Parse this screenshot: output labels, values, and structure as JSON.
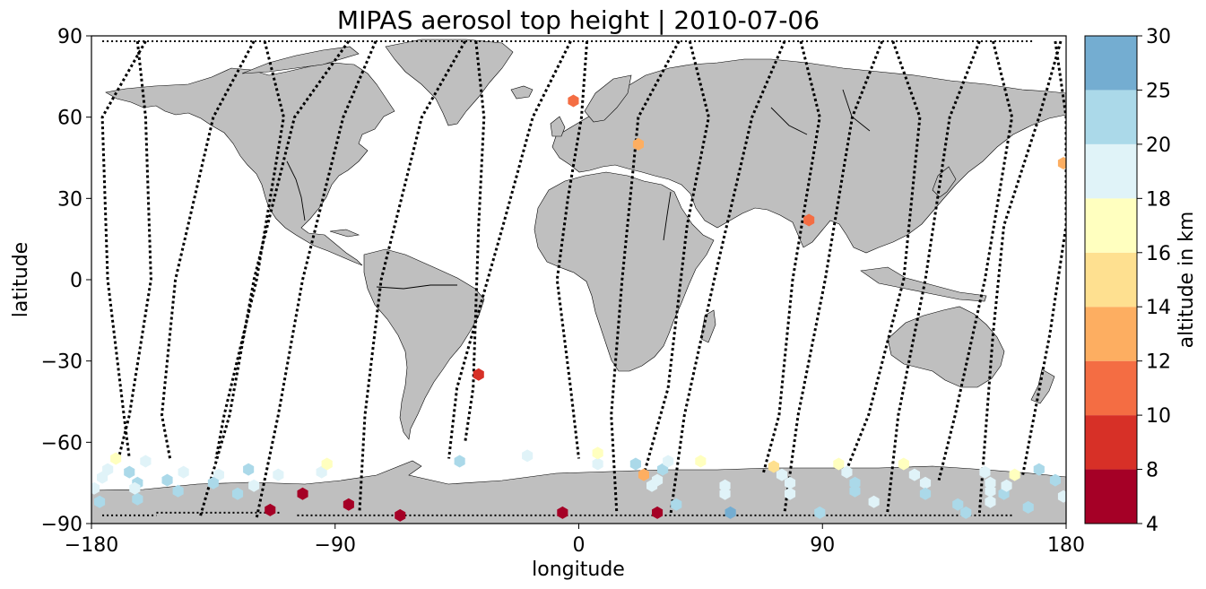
{
  "title": "MIPAS aerosol top height | 2010-07-06",
  "colors": {
    "land": "#bfbfbf",
    "coast": "#000000",
    "track": "#000000",
    "background": "#ffffff"
  },
  "chart_data": {
    "type": "map-scatter",
    "projection": "plate-carree",
    "xlabel": "longitude",
    "ylabel": "latitude",
    "xlim": [
      -180,
      180
    ],
    "ylim": [
      -90,
      90
    ],
    "xticks": [
      -180,
      -90,
      0,
      90,
      180
    ],
    "yticks": [
      90,
      60,
      30,
      0,
      -30,
      -60,
      -90
    ],
    "grid": false,
    "colorbar": {
      "label": "altitude in km",
      "placement": "right",
      "boundaries": [
        4,
        8,
        10,
        12,
        14,
        16,
        18,
        20,
        25,
        30
      ],
      "colors": [
        "#a50026",
        "#d73027",
        "#f46d43",
        "#fdae61",
        "#fee090",
        "#ffffbf",
        "#e0f3f8",
        "#abd9e9",
        "#74add1",
        "#313695"
      ]
    },
    "points": [
      {
        "lon": -177,
        "lat": -82,
        "alt": 21
      },
      {
        "lon": -179,
        "lat": -77,
        "alt": 19
      },
      {
        "lon": -176,
        "lat": -73,
        "alt": 19
      },
      {
        "lon": -174,
        "lat": -70,
        "alt": 19
      },
      {
        "lon": -171,
        "lat": -66,
        "alt": 16
      },
      {
        "lon": -166,
        "lat": -71,
        "alt": 21
      },
      {
        "lon": -163,
        "lat": -75,
        "alt": 21
      },
      {
        "lon": -163,
        "lat": -81,
        "alt": 21
      },
      {
        "lon": -164,
        "lat": -77,
        "alt": 18
      },
      {
        "lon": -160,
        "lat": -67,
        "alt": 19
      },
      {
        "lon": -152,
        "lat": -74,
        "alt": 21
      },
      {
        "lon": -146,
        "lat": -71,
        "alt": 19
      },
      {
        "lon": -148,
        "lat": -78,
        "alt": 21
      },
      {
        "lon": -133,
        "lat": -72,
        "alt": 19
      },
      {
        "lon": -126,
        "lat": -79,
        "alt": 21
      },
      {
        "lon": -120,
        "lat": -76,
        "alt": 19
      },
      {
        "lon": -111,
        "lat": -72,
        "alt": 19
      },
      {
        "lon": -122,
        "lat": -70,
        "alt": 21
      },
      {
        "lon": -135,
        "lat": -75,
        "alt": 21
      },
      {
        "lon": -114,
        "lat": -85,
        "alt": 6
      },
      {
        "lon": -102,
        "lat": -79,
        "alt": 6
      },
      {
        "lon": -95,
        "lat": -71,
        "alt": 19
      },
      {
        "lon": -93,
        "lat": -68,
        "alt": 17
      },
      {
        "lon": -85,
        "lat": -83,
        "alt": 6
      },
      {
        "lon": -66,
        "lat": -87,
        "alt": 6
      },
      {
        "lon": -44,
        "lat": -67,
        "alt": 21
      },
      {
        "lon": -37,
        "lat": -35,
        "alt": 9
      },
      {
        "lon": -19,
        "lat": -65,
        "alt": 19
      },
      {
        "lon": -6,
        "lat": -86,
        "alt": 6
      },
      {
        "lon": -2,
        "lat": 66,
        "alt": 11
      },
      {
        "lon": 7,
        "lat": -68,
        "alt": 19
      },
      {
        "lon": 7,
        "lat": -64,
        "alt": 17
      },
      {
        "lon": 21,
        "lat": -68,
        "alt": 21
      },
      {
        "lon": 22,
        "lat": 50,
        "alt": 13
      },
      {
        "lon": 24,
        "lat": -72,
        "alt": 13
      },
      {
        "lon": 27,
        "lat": -76,
        "alt": 19
      },
      {
        "lon": 29,
        "lat": -74,
        "alt": 18
      },
      {
        "lon": 31,
        "lat": -70,
        "alt": 21
      },
      {
        "lon": 33,
        "lat": -67,
        "alt": 19
      },
      {
        "lon": 29,
        "lat": -86,
        "alt": 6
      },
      {
        "lon": 36,
        "lat": -83,
        "alt": 21
      },
      {
        "lon": 45,
        "lat": -67,
        "alt": 17
      },
      {
        "lon": 54,
        "lat": -76,
        "alt": 19
      },
      {
        "lon": 54,
        "lat": -79,
        "alt": 19
      },
      {
        "lon": 56,
        "lat": -86,
        "alt": 28
      },
      {
        "lon": 72,
        "lat": -69,
        "alt": 15
      },
      {
        "lon": 75,
        "lat": -72,
        "alt": 19
      },
      {
        "lon": 78,
        "lat": -75,
        "alt": 19
      },
      {
        "lon": 78,
        "lat": -79,
        "alt": 19
      },
      {
        "lon": 85,
        "lat": 22,
        "alt": 11
      },
      {
        "lon": 89,
        "lat": -86,
        "alt": 21
      },
      {
        "lon": 96,
        "lat": -68,
        "alt": 17
      },
      {
        "lon": 99,
        "lat": -71,
        "alt": 19
      },
      {
        "lon": 102,
        "lat": -75,
        "alt": 21
      },
      {
        "lon": 102,
        "lat": -78,
        "alt": 21
      },
      {
        "lon": 109,
        "lat": -82,
        "alt": 19
      },
      {
        "lon": 120,
        "lat": -68,
        "alt": 17
      },
      {
        "lon": 124,
        "lat": -72,
        "alt": 19
      },
      {
        "lon": 128,
        "lat": -75,
        "alt": 19
      },
      {
        "lon": 128,
        "lat": -79,
        "alt": 21
      },
      {
        "lon": 140,
        "lat": -83,
        "alt": 21
      },
      {
        "lon": 143,
        "lat": -86,
        "alt": 21
      },
      {
        "lon": 150,
        "lat": -71,
        "alt": 19
      },
      {
        "lon": 152,
        "lat": -75,
        "alt": 19
      },
      {
        "lon": 152,
        "lat": -78,
        "alt": 19
      },
      {
        "lon": 152,
        "lat": -82,
        "alt": 19
      },
      {
        "lon": 157,
        "lat": -79,
        "alt": 21
      },
      {
        "lon": 158,
        "lat": -76,
        "alt": 19
      },
      {
        "lon": 161,
        "lat": -72,
        "alt": 17
      },
      {
        "lon": 170,
        "lat": -70,
        "alt": 21
      },
      {
        "lon": 176,
        "lat": -74,
        "alt": 21
      },
      {
        "lon": 179,
        "lat": -80,
        "alt": 19
      },
      {
        "lon": 166,
        "lat": -84,
        "alt": 21
      },
      {
        "lon": 179,
        "lat": 43,
        "alt": 13
      }
    ],
    "tracks": [
      [
        [
          -160,
          88
        ],
        [
          -176,
          60
        ],
        [
          -174,
          0
        ],
        [
          -168,
          -50
        ],
        [
          -166,
          -66
        ]
      ],
      [
        [
          -163,
          88
        ],
        [
          -160,
          60
        ],
        [
          -158,
          0
        ],
        [
          -166,
          -50
        ],
        [
          -170,
          -66
        ]
      ],
      [
        [
          -120,
          88
        ],
        [
          -135,
          60
        ],
        [
          -149,
          0
        ],
        [
          -154,
          -50
        ],
        [
          -151,
          -66
        ]
      ],
      [
        [
          -116,
          88
        ],
        [
          -109,
          60
        ],
        [
          -119,
          0
        ],
        [
          -131,
          -50
        ],
        [
          -134,
          -66
        ]
      ],
      [
        [
          -85,
          88
        ],
        [
          -105,
          60
        ],
        [
          -120,
          0
        ],
        [
          -129,
          -50
        ],
        [
          -140,
          -88
        ]
      ],
      [
        [
          -75,
          88
        ],
        [
          -87,
          60
        ],
        [
          -102,
          0
        ],
        [
          -111,
          -50
        ],
        [
          -119,
          -88
        ]
      ],
      [
        [
          -42,
          88
        ],
        [
          -58,
          60
        ],
        [
          -73,
          0
        ],
        [
          -79,
          -50
        ],
        [
          -81,
          -86
        ]
      ],
      [
        [
          -38,
          88
        ],
        [
          -35,
          60
        ],
        [
          -37,
          20
        ],
        [
          -39,
          -40
        ],
        [
          -42,
          -60
        ]
      ],
      [
        [
          -3,
          88
        ],
        [
          -17,
          60
        ],
        [
          -28,
          20
        ],
        [
          -45,
          -40
        ],
        [
          -48,
          -66
        ]
      ],
      [
        [
          3,
          88
        ],
        [
          1,
          60
        ],
        [
          -4,
          30
        ],
        [
          -8,
          0
        ],
        [
          -3,
          -40
        ],
        [
          0,
          -66
        ]
      ],
      [
        [
          37,
          88
        ],
        [
          22,
          60
        ],
        [
          16,
          0
        ],
        [
          12,
          -50
        ],
        [
          14,
          -86
        ]
      ],
      [
        [
          41,
          88
        ],
        [
          48,
          60
        ],
        [
          40,
          20
        ],
        [
          33,
          -40
        ],
        [
          24,
          -72
        ]
      ],
      [
        [
          76,
          88
        ],
        [
          64,
          60
        ],
        [
          50,
          0
        ],
        [
          39,
          -50
        ],
        [
          34,
          -86
        ]
      ],
      [
        [
          82,
          88
        ],
        [
          89,
          60
        ],
        [
          79,
          0
        ],
        [
          74,
          -50
        ],
        [
          68,
          -72
        ]
      ],
      [
        [
          112,
          88
        ],
        [
          101,
          60
        ],
        [
          91,
          0
        ],
        [
          81,
          -50
        ],
        [
          76,
          -86
        ]
      ],
      [
        [
          116,
          88
        ],
        [
          126,
          60
        ],
        [
          120,
          0
        ],
        [
          107,
          -50
        ],
        [
          99,
          -70
        ]
      ],
      [
        [
          148,
          88
        ],
        [
          137,
          60
        ],
        [
          128,
          0
        ],
        [
          118,
          -50
        ],
        [
          114,
          -86
        ]
      ],
      [
        [
          153,
          88
        ],
        [
          160,
          60
        ],
        [
          150,
          0
        ],
        [
          139,
          -50
        ],
        [
          133,
          -74
        ]
      ],
      [
        [
          178,
          88
        ],
        [
          170,
          60
        ],
        [
          157,
          20
        ],
        [
          153,
          -20
        ],
        [
          148,
          -86
        ]
      ],
      [
        [
          176,
          88
        ],
        [
          180,
          60
        ],
        [
          180,
          20
        ],
        [
          174,
          -20
        ],
        [
          164,
          -72
        ]
      ]
    ]
  }
}
